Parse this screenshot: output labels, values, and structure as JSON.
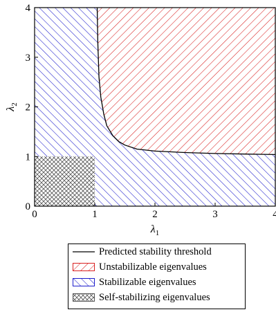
{
  "chart_data": {
    "type": "area",
    "x_label": "λ",
    "x_label_sub": "1",
    "y_label": "λ",
    "y_label_sub": "2",
    "xlim": [
      0,
      4
    ],
    "ylim": [
      0,
      4
    ],
    "x_ticks": [
      "0",
      "1",
      "2",
      "3",
      "4"
    ],
    "y_ticks": [
      "0",
      "1",
      "2",
      "3",
      "4"
    ],
    "grid": false,
    "legend_position": "below",
    "threshold_curve": {
      "description": "approximately hyperbolic boundary; vertical asymptote near lambda1 = 1, horizontal asymptote near lambda2 = 1",
      "x": [
        1.04,
        1.05,
        1.07,
        1.1,
        1.15,
        1.2,
        1.3,
        1.4,
        1.5,
        1.7,
        2.0,
        2.5,
        3.0,
        3.5,
        4.0
      ],
      "y": [
        4.0,
        3.3,
        2.6,
        2.2,
        1.85,
        1.62,
        1.42,
        1.3,
        1.23,
        1.15,
        1.11,
        1.08,
        1.06,
        1.05,
        1.04
      ]
    },
    "regions": {
      "self_stabilizing": {
        "x": [
          0,
          1
        ],
        "y": [
          0,
          1
        ]
      },
      "stabilizable": "area below/left of the threshold curve (excluding self-stabilizing square)",
      "unstabilizable": "area above/right of the threshold curve"
    },
    "series": [
      {
        "name": "Predicted stability threshold",
        "style": "line",
        "color": "#000000"
      },
      {
        "name": "Unstabilizable eigenvalues",
        "style": "hatch-right",
        "color": "#d92020"
      },
      {
        "name": "Stabilizable eigenvalues",
        "style": "hatch-left",
        "color": "#1c1ccc"
      },
      {
        "name": "Self-stabilizing eigenvalues",
        "style": "crosshatch",
        "color": "#555555"
      }
    ]
  }
}
